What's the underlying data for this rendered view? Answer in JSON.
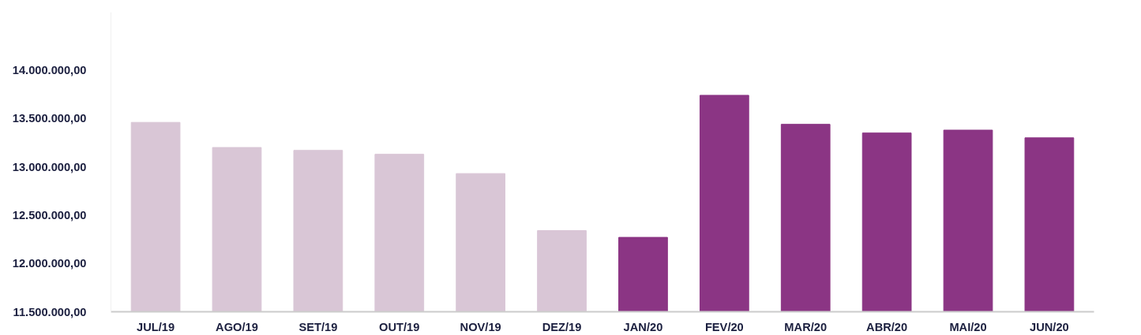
{
  "chart_data": {
    "type": "bar",
    "categories": [
      "JUL/19",
      "AGO/19",
      "SET/19",
      "OUT/19",
      "NOV/19",
      "DEZ/19",
      "JAN/20",
      "FEV/20",
      "MAR/20",
      "ABR/20",
      "MAI/20",
      "JUN/20"
    ],
    "values": [
      13460000,
      13200000,
      13170000,
      13130000,
      12930000,
      12340000,
      12270000,
      13740000,
      13440000,
      13350000,
      13380000,
      13300000
    ],
    "colors": [
      "#d9c6d6",
      "#d9c6d6",
      "#d9c6d6",
      "#d9c6d6",
      "#d9c6d6",
      "#d9c6d6",
      "#8b3584",
      "#8b3584",
      "#8b3584",
      "#8b3584",
      "#8b3584",
      "#8b3584"
    ],
    "ylim": [
      11500000,
      14600000
    ],
    "yticks": [
      {
        "value": 11500000,
        "label": "11.500.000,00"
      },
      {
        "value": 12000000,
        "label": "12.000.000,00"
      },
      {
        "value": 12500000,
        "label": "12.500.000,00"
      },
      {
        "value": 13000000,
        "label": "13.000.000,00"
      },
      {
        "value": 13500000,
        "label": "13.500.000,00"
      },
      {
        "value": 14000000,
        "label": "14.000.000,00"
      }
    ],
    "grid": false
  }
}
